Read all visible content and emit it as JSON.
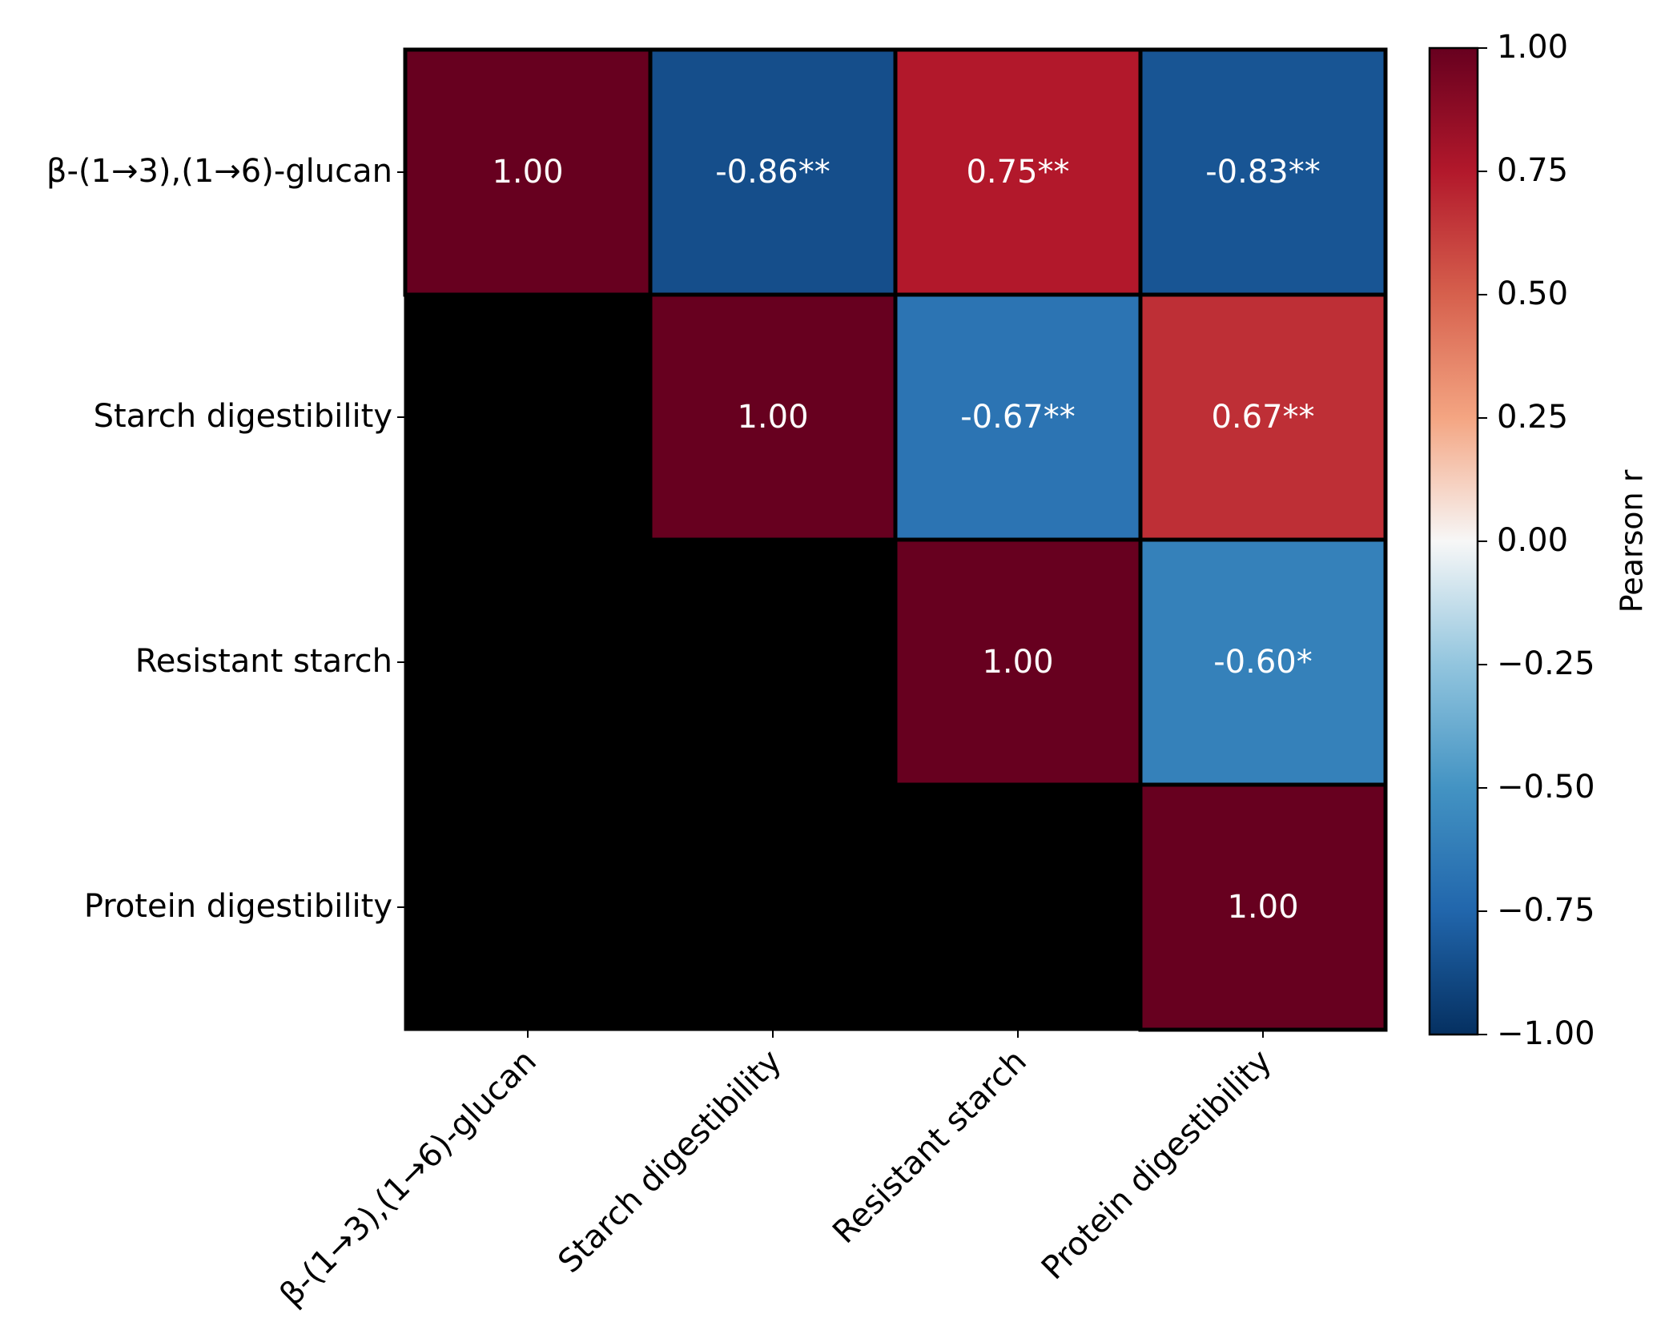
{
  "chart_data": {
    "type": "heatmap",
    "variables": [
      "β-(1→3),(1→6)-glucan",
      "Starch digestibility",
      "Resistant starch",
      "Protein digestibility"
    ],
    "matrix": [
      [
        1.0,
        -0.86,
        0.75,
        -0.83
      ],
      [
        null,
        1.0,
        -0.67,
        0.67
      ],
      [
        null,
        null,
        1.0,
        -0.6
      ],
      [
        null,
        null,
        null,
        1.0
      ]
    ],
    "cell_labels": [
      [
        "1.00",
        "-0.86**",
        "0.75**",
        "-0.83**"
      ],
      [
        "",
        "1.00",
        "-0.67**",
        "0.67**"
      ],
      [
        "",
        "",
        "1.00",
        "-0.60*"
      ],
      [
        "",
        "",
        "",
        "1.00"
      ]
    ],
    "masked_region": "lower triangle",
    "masked_color": "#000000",
    "colormap": "RdBu_r",
    "vmin": -1.0,
    "vmax": 1.0,
    "colorbar": {
      "label": "Pearson r",
      "ticks": [
        1.0,
        0.75,
        0.5,
        0.25,
        0.0,
        -0.25,
        -0.5,
        -0.75,
        -1.0
      ],
      "tick_labels": [
        "1.00",
        "0.75",
        "0.50",
        "0.25",
        "0.00",
        "−0.25",
        "−0.50",
        "−0.75",
        "−1.00"
      ]
    },
    "colors": {
      "cell_text": "#ffffff",
      "cell_border": "#000000",
      "axis_text": "#000000"
    }
  }
}
